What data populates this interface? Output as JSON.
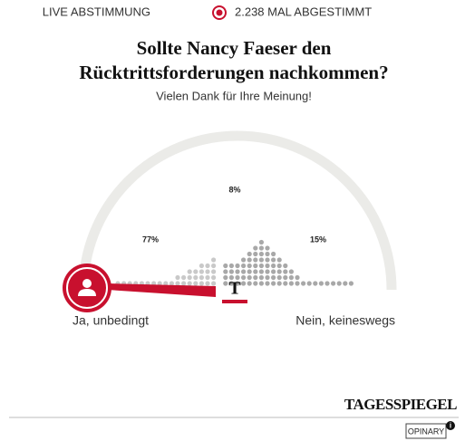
{
  "header": {
    "live_label": "LIVE ABSTIMMUNG",
    "votes": "2.238 MAL ABGESTIMMT"
  },
  "question": {
    "title_lines": [
      "Sollte Nancy Faeser den",
      "Rücktrittsforderungen nachkommen?"
    ],
    "subtitle": "Vielen Dank für Ihre Meinung!"
  },
  "results": [
    "77%",
    "8%",
    "15%"
  ],
  "scale": {
    "left": "Ja, unbedingt",
    "right": "Nein, keineswegs",
    "marker": "T"
  },
  "footer": {
    "brand": "TAGESSPIEGEL",
    "provider": "OPINARY",
    "info": "i"
  }
}
